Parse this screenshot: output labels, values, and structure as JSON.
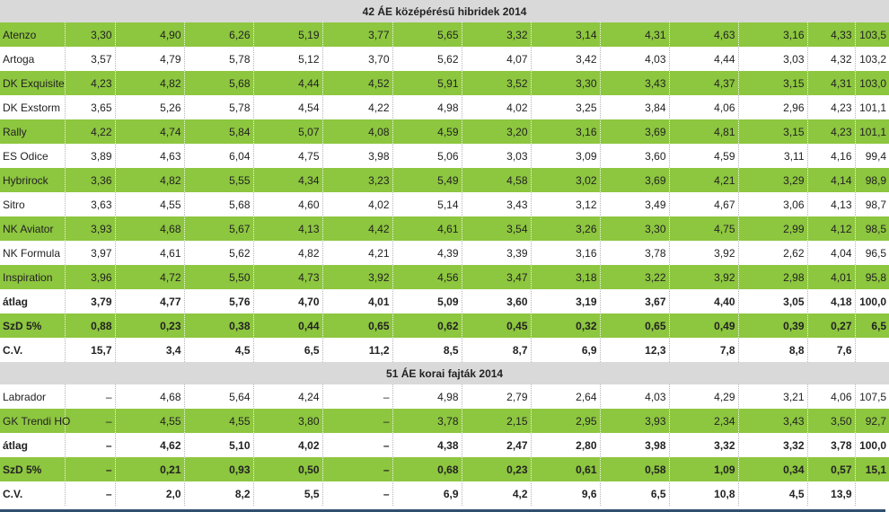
{
  "colors": {
    "row_green": "#8dc63f",
    "row_white": "#ffffff",
    "section_gray": "#d9d9d9",
    "bottom_rule": "#2f4f6f"
  },
  "sections": [
    {
      "title": "42  ÁE középérésű hibridek 2014",
      "rows": [
        {
          "style": "green",
          "bold": false,
          "name": "Atenzo",
          "values": [
            "3,30",
            "4,90",
            "6,26",
            "5,19",
            "3,77",
            "5,65",
            "3,32",
            "3,14",
            "4,31",
            "4,63",
            "3,16",
            "4,33",
            "103,5"
          ]
        },
        {
          "style": "white",
          "bold": false,
          "name": "Artoga",
          "values": [
            "3,57",
            "4,79",
            "5,78",
            "5,12",
            "3,70",
            "5,62",
            "4,07",
            "3,42",
            "4,03",
            "4,44",
            "3,03",
            "4,32",
            "103,2"
          ]
        },
        {
          "style": "green",
          "bold": false,
          "name": "DK Exquisite",
          "values": [
            "4,23",
            "4,82",
            "5,68",
            "4,44",
            "4,52",
            "5,91",
            "3,52",
            "3,30",
            "3,43",
            "4,37",
            "3,15",
            "4,31",
            "103,0"
          ]
        },
        {
          "style": "white",
          "bold": false,
          "name": "DK Exstorm",
          "values": [
            "3,65",
            "5,26",
            "5,78",
            "4,54",
            "4,22",
            "4,98",
            "4,02",
            "3,25",
            "3,84",
            "4,06",
            "2,96",
            "4,23",
            "101,1"
          ]
        },
        {
          "style": "green",
          "bold": false,
          "name": "Rally",
          "values": [
            "4,22",
            "4,74",
            "5,84",
            "5,07",
            "4,08",
            "4,59",
            "3,20",
            "3,16",
            "3,69",
            "4,81",
            "3,15",
            "4,23",
            "101,1"
          ]
        },
        {
          "style": "white",
          "bold": false,
          "name": "ES Odice",
          "values": [
            "3,89",
            "4,63",
            "6,04",
            "4,75",
            "3,98",
            "5,06",
            "3,03",
            "3,09",
            "3,60",
            "4,59",
            "3,11",
            "4,16",
            "99,4"
          ]
        },
        {
          "style": "green",
          "bold": false,
          "name": "Hybrirock",
          "values": [
            "3,36",
            "4,82",
            "5,55",
            "4,34",
            "3,23",
            "5,49",
            "4,58",
            "3,02",
            "3,69",
            "4,21",
            "3,29",
            "4,14",
            "98,9"
          ]
        },
        {
          "style": "white",
          "bold": false,
          "name": "Sitro",
          "values": [
            "3,63",
            "4,55",
            "5,68",
            "4,60",
            "4,02",
            "5,14",
            "3,43",
            "3,12",
            "3,49",
            "4,67",
            "3,06",
            "4,13",
            "98,7"
          ]
        },
        {
          "style": "green",
          "bold": false,
          "name": "NK Aviator",
          "values": [
            "3,93",
            "4,68",
            "5,67",
            "4,13",
            "4,42",
            "4,61",
            "3,54",
            "3,26",
            "3,30",
            "4,75",
            "2,99",
            "4,12",
            "98,5"
          ]
        },
        {
          "style": "white",
          "bold": false,
          "name": "NK Formula",
          "values": [
            "3,97",
            "4,61",
            "5,62",
            "4,82",
            "4,21",
            "4,39",
            "3,39",
            "3,16",
            "3,78",
            "3,92",
            "2,62",
            "4,04",
            "96,5"
          ]
        },
        {
          "style": "green",
          "bold": false,
          "name": "Inspiration",
          "values": [
            "3,96",
            "4,72",
            "5,50",
            "4,73",
            "3,92",
            "4,56",
            "3,47",
            "3,18",
            "3,22",
            "3,92",
            "2,98",
            "4,01",
            "95,8"
          ]
        },
        {
          "style": "white",
          "bold": true,
          "name": "átlag",
          "values": [
            "3,79",
            "4,77",
            "5,76",
            "4,70",
            "4,01",
            "5,09",
            "3,60",
            "3,19",
            "3,67",
            "4,40",
            "3,05",
            "4,18",
            "100,0"
          ]
        },
        {
          "style": "green",
          "bold": true,
          "name": "SzD 5%",
          "values": [
            "0,88",
            "0,23",
            "0,38",
            "0,44",
            "0,65",
            "0,62",
            "0,45",
            "0,32",
            "0,65",
            "0,49",
            "0,39",
            "0,27",
            "6,5"
          ]
        },
        {
          "style": "white",
          "bold": true,
          "name": "C.V.",
          "values": [
            "15,7",
            "3,4",
            "4,5",
            "6,5",
            "11,2",
            "8,5",
            "8,7",
            "6,9",
            "12,3",
            "7,8",
            "8,8",
            "7,6",
            ""
          ]
        }
      ]
    },
    {
      "title": "51  ÁE korai fajták 2014",
      "rows": [
        {
          "style": "white",
          "bold": false,
          "name": "Labrador",
          "values": [
            "–",
            "4,68",
            "5,64",
            "4,24",
            "–",
            "4,98",
            "2,79",
            "2,64",
            "4,03",
            "4,29",
            "3,21",
            "4,06",
            "107,5"
          ]
        },
        {
          "style": "green",
          "bold": false,
          "name": "GK Trendi HO",
          "values": [
            "–",
            "4,55",
            "4,55",
            "3,80",
            "–",
            "3,78",
            "2,15",
            "2,95",
            "3,93",
            "2,34",
            "3,43",
            "3,50",
            "92,7"
          ]
        },
        {
          "style": "white",
          "bold": true,
          "name": "átlag",
          "values": [
            "–",
            "4,62",
            "5,10",
            "4,02",
            "–",
            "4,38",
            "2,47",
            "2,80",
            "3,98",
            "3,32",
            "3,32",
            "3,78",
            "100,0"
          ]
        },
        {
          "style": "green",
          "bold": true,
          "name": "SzD 5%",
          "values": [
            "–",
            "0,21",
            "0,93",
            "0,50",
            "–",
            "0,68",
            "0,23",
            "0,61",
            "0,58",
            "1,09",
            "0,34",
            "0,57",
            "15,1"
          ]
        },
        {
          "style": "white",
          "bold": true,
          "name": "C.V.",
          "values": [
            "–",
            "2,0",
            "8,2",
            "5,5",
            "–",
            "6,9",
            "4,2",
            "9,6",
            "6,5",
            "10,8",
            "4,5",
            "13,9",
            ""
          ]
        }
      ]
    }
  ]
}
